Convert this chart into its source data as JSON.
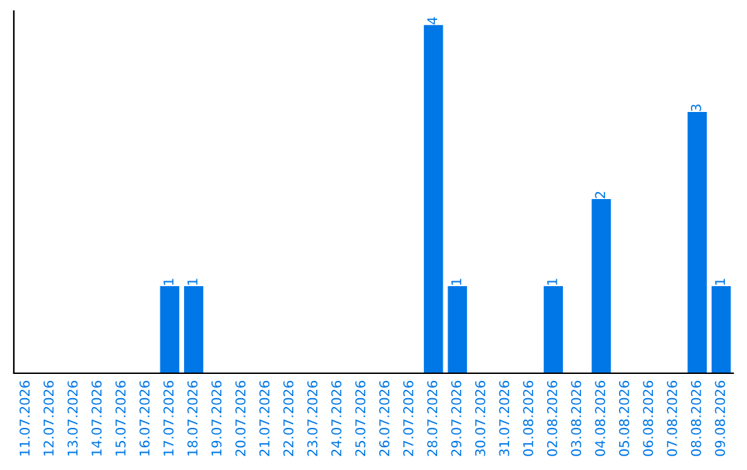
{
  "chart_data": {
    "type": "bar",
    "categories": [
      "11.07.2026",
      "12.07.2026",
      "13.07.2026",
      "14.07.2026",
      "15.07.2026",
      "16.07.2026",
      "17.07.2026",
      "18.07.2026",
      "19.07.2026",
      "20.07.2026",
      "21.07.2026",
      "22.07.2026",
      "23.07.2026",
      "24.07.2026",
      "25.07.2026",
      "26.07.2026",
      "27.07.2026",
      "28.07.2026",
      "29.07.2026",
      "30.07.2026",
      "31.07.2026",
      "01.08.2026",
      "02.08.2026",
      "03.08.2026",
      "04.08.2026",
      "05.08.2026",
      "06.08.2026",
      "07.08.2026",
      "08.08.2026",
      "09.08.2026"
    ],
    "values": [
      0,
      0,
      0,
      0,
      0,
      0,
      1,
      1,
      0,
      0,
      0,
      0,
      0,
      0,
      0,
      0,
      0,
      4,
      1,
      0,
      0,
      0,
      1,
      0,
      2,
      0,
      0,
      0,
      3,
      1
    ],
    "value_labels": [
      null,
      null,
      null,
      null,
      null,
      null,
      "1",
      "1",
      null,
      null,
      null,
      null,
      null,
      null,
      null,
      null,
      null,
      "4",
      "1",
      null,
      null,
      null,
      "1",
      null,
      "2",
      null,
      null,
      null,
      "3",
      "1"
    ],
    "color": "#0077e6",
    "tick_labels": "x",
    "grid": false,
    "legend": false
  }
}
